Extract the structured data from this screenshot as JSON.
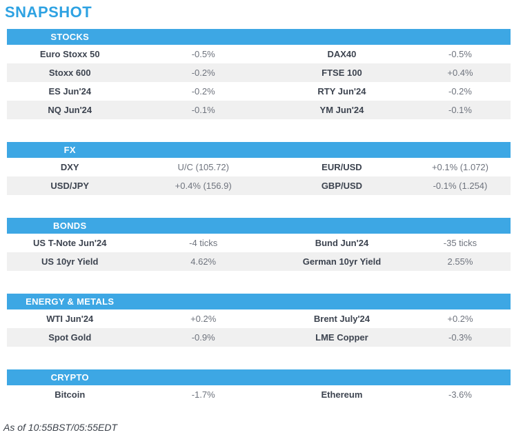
{
  "page": {
    "title": "SNAPSHOT",
    "footer": "As of 10:55BST/05:55EDT"
  },
  "colors": {
    "accent_blue": "#3da7e4",
    "title_blue": "#2ea2e2",
    "section_header_text": "#ffffff",
    "label_text": "#3c434f",
    "value_text": "#6e737d",
    "row_alt_bg": "#f0f0f0"
  },
  "sections": [
    {
      "name": "STOCKS",
      "rows": [
        {
          "l_label": "Euro Stoxx 50",
          "l_value": "-0.5%",
          "r_label": "DAX40",
          "r_value": "-0.5%"
        },
        {
          "l_label": "Stoxx 600",
          "l_value": "-0.2%",
          "r_label": "FTSE 100",
          "r_value": "+0.4%"
        },
        {
          "l_label": "ES Jun'24",
          "l_value": "-0.2%",
          "r_label": "RTY Jun'24",
          "r_value": "-0.2%"
        },
        {
          "l_label": "NQ Jun'24",
          "l_value": "-0.1%",
          "r_label": "YM Jun'24",
          "r_value": "-0.1%"
        }
      ]
    },
    {
      "name": "FX",
      "rows": [
        {
          "l_label": "DXY",
          "l_value": "U/C (105.72)",
          "r_label": "EUR/USD",
          "r_value": "+0.1% (1.072)"
        },
        {
          "l_label": "USD/JPY",
          "l_value": "+0.4% (156.9)",
          "r_label": "GBP/USD",
          "r_value": "-0.1% (1.254)"
        }
      ]
    },
    {
      "name": "BONDS",
      "rows": [
        {
          "l_label": "US T-Note Jun'24",
          "l_value": "-4 ticks",
          "r_label": "Bund Jun'24",
          "r_value": "-35 ticks"
        },
        {
          "l_label": "US 10yr Yield",
          "l_value": "4.62%",
          "r_label": "German 10yr Yield",
          "r_value": "2.55%"
        }
      ]
    },
    {
      "name": "ENERGY & METALS",
      "rows": [
        {
          "l_label": "WTI Jun'24",
          "l_value": "+0.2%",
          "r_label": "Brent July'24",
          "r_value": "+0.2%"
        },
        {
          "l_label": "Spot Gold",
          "l_value": "-0.9%",
          "r_label": "LME Copper",
          "r_value": "-0.3%"
        }
      ]
    },
    {
      "name": "CRYPTO",
      "rows": [
        {
          "l_label": "Bitcoin",
          "l_value": "-1.7%",
          "r_label": "Ethereum",
          "r_value": "-3.6%"
        }
      ]
    }
  ]
}
